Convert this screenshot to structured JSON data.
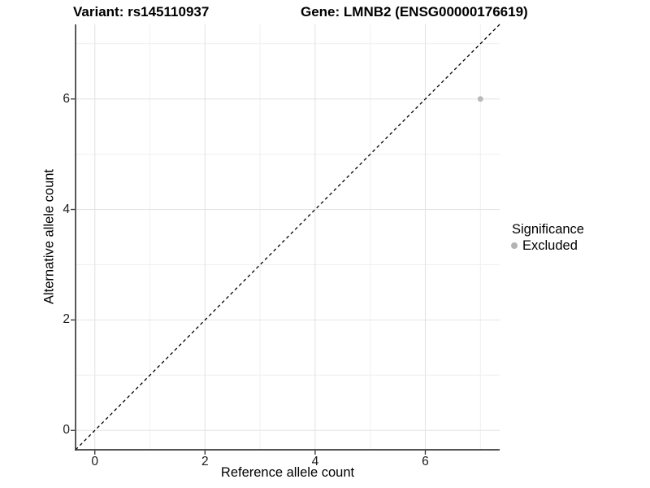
{
  "titles": {
    "left": "Variant: rs145110937",
    "right": "Gene: LMNB2 (ENSG00000176619)"
  },
  "legend": {
    "title": "Significance",
    "items": [
      {
        "label": "Excluded",
        "color": "#b4b4b4"
      }
    ]
  },
  "chart_data": {
    "type": "scatter",
    "title": "Variant: rs145110937 / Gene: LMNB2 (ENSG00000176619)",
    "xlabel": "Reference allele count",
    "ylabel": "Alternative allele count",
    "xlim": [
      -0.35,
      7.35
    ],
    "ylim": [
      -0.35,
      7.35
    ],
    "x_major_ticks": [
      0,
      2,
      4,
      6
    ],
    "y_major_ticks": [
      0,
      2,
      4,
      6
    ],
    "x_minor_gridlines": [
      1,
      3,
      5,
      7
    ],
    "y_minor_gridlines": [
      1,
      3,
      5,
      7
    ],
    "grid": true,
    "legend_position": "right",
    "series": [
      {
        "name": "Excluded",
        "color": "#b9b9b9",
        "points": [
          {
            "x": 7,
            "y": 6
          }
        ]
      }
    ],
    "reference_line": {
      "type": "identity",
      "style": "dashed",
      "color": "#000000"
    }
  },
  "style_colors": {
    "grid_major": "#e4e4e4",
    "grid_minor": "#efefef",
    "axis_line": "#3c3c3c",
    "tick_mark": "#3c3c3c"
  }
}
